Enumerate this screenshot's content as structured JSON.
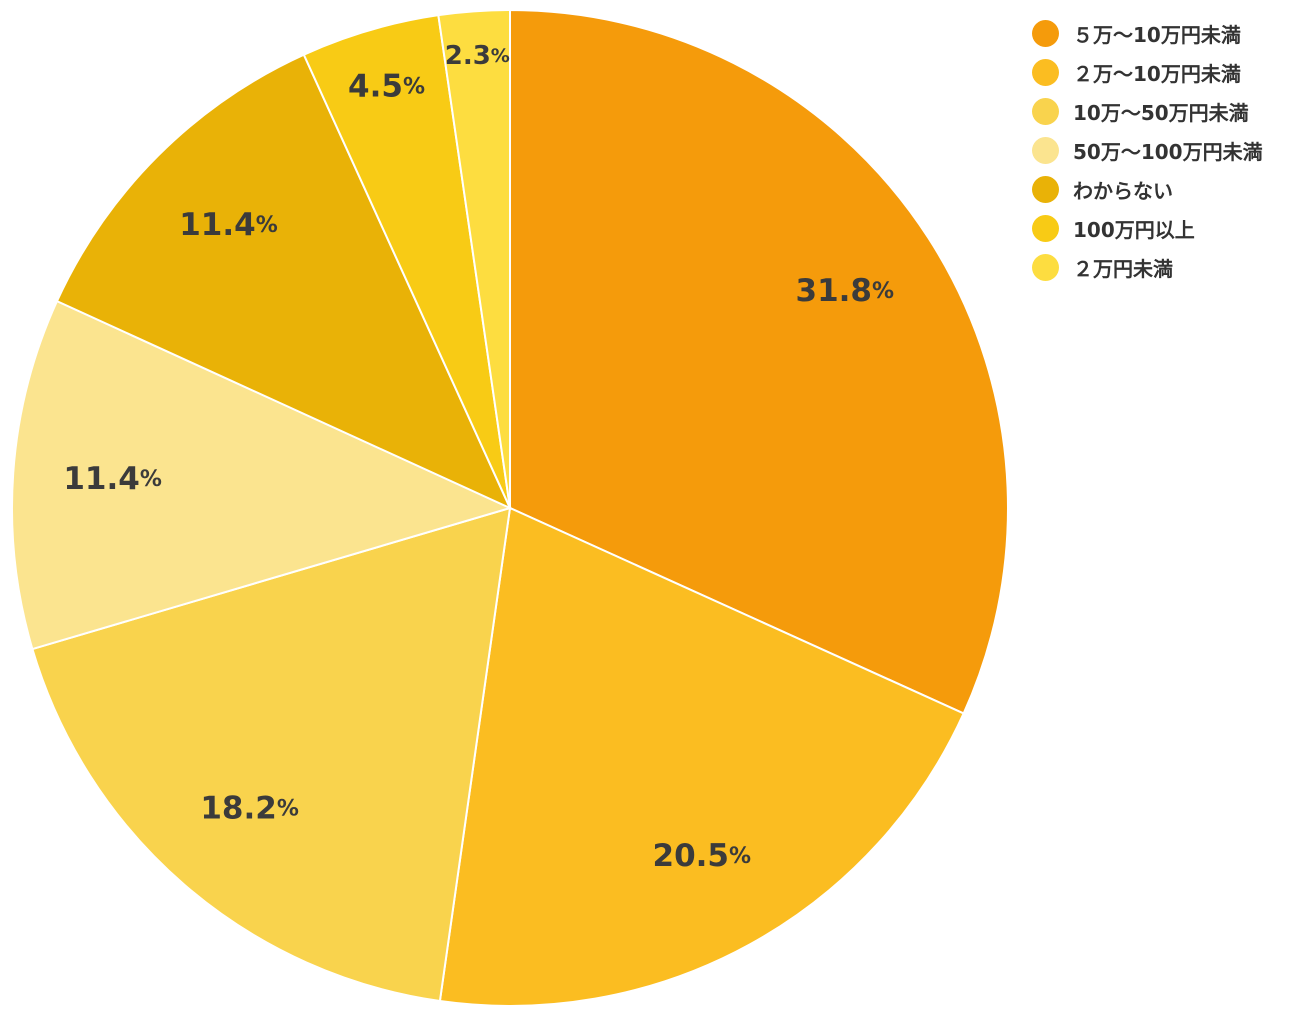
{
  "chart_data": {
    "type": "pie",
    "title": "",
    "start_angle_deg": 0,
    "direction": "clockwise",
    "legend_position": "top-right",
    "pct_suffix": "%",
    "slices": [
      {
        "label": "５万〜10万円未満",
        "value": 31.8,
        "color": "#F59B0B"
      },
      {
        "label": "２万〜10万円未満",
        "value": 20.5,
        "color": "#FBBD21"
      },
      {
        "label": "10万〜50万円未満",
        "value": 18.2,
        "color": "#F9D34D"
      },
      {
        "label": "50万〜100万円未満",
        "value": 11.4,
        "color": "#FBE48F"
      },
      {
        "label": "わからない",
        "value": 11.4,
        "color": "#E9B207"
      },
      {
        "label": "100万円以上",
        "value": 4.5,
        "color": "#F8CB15"
      },
      {
        "label": "２万円未満",
        "value": 2.3,
        "color": "#FDDD40"
      }
    ]
  }
}
